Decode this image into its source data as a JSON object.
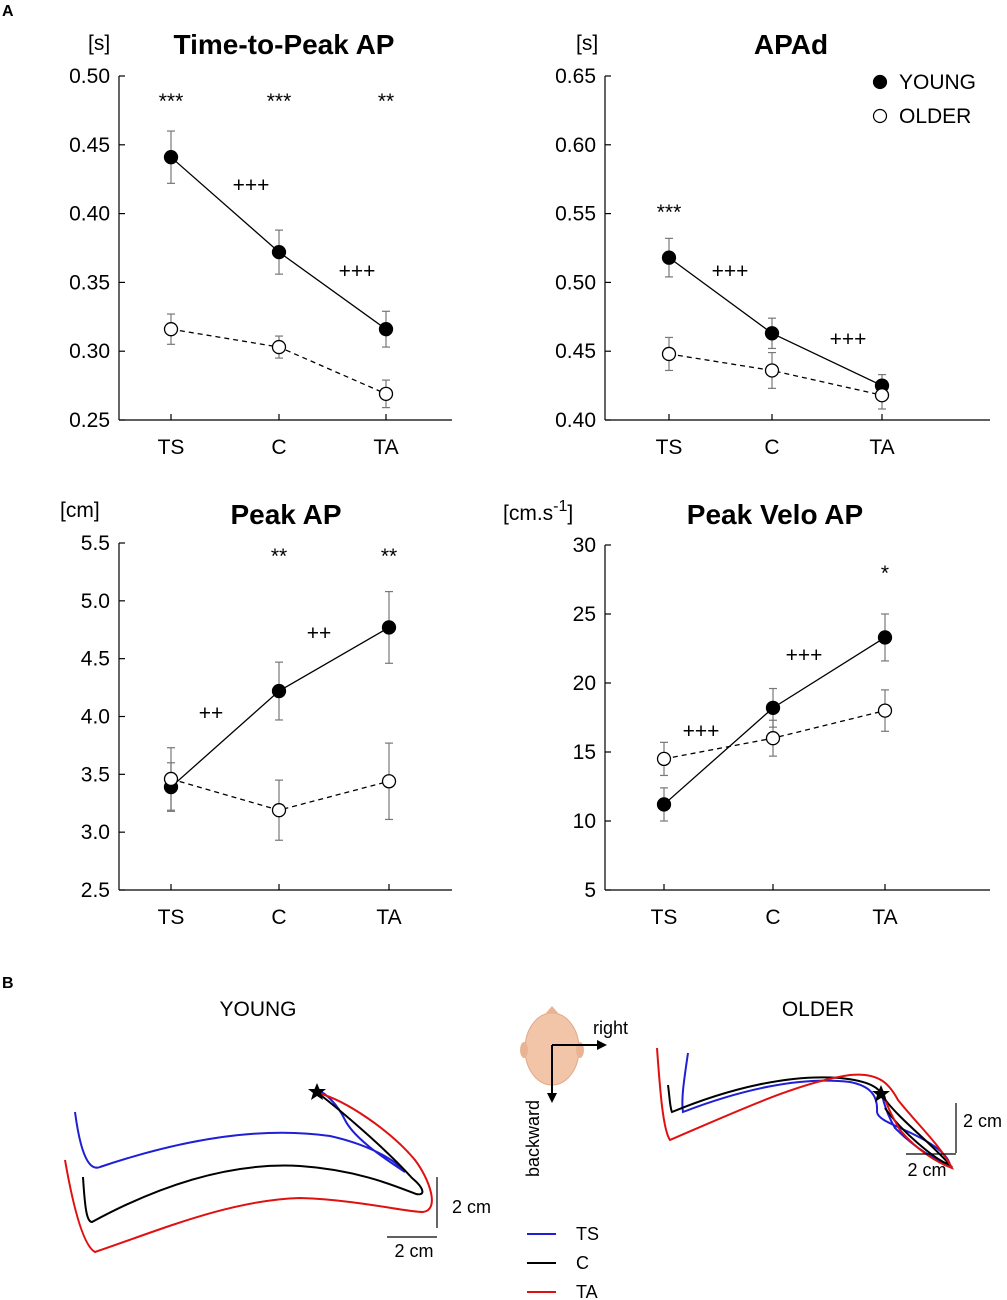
{
  "panels": {
    "a": "A",
    "b": "B"
  },
  "legend": {
    "young": "YOUNG",
    "older": "OLDER"
  },
  "chart_data": [
    {
      "type": "line",
      "title": "Time-to-Peak AP",
      "ylabel": "[s]",
      "categories": [
        "TS",
        "C",
        "TA"
      ],
      "ylim": [
        0.25,
        0.5
      ],
      "yticks": [
        0.25,
        0.3,
        0.35,
        0.4,
        0.45,
        0.5
      ],
      "yticklabels": [
        "0.25",
        "0.30",
        "0.35",
        "0.40",
        "0.45",
        "0.50"
      ],
      "series": [
        {
          "name": "YOUNG",
          "values": [
            0.441,
            0.372,
            0.316
          ],
          "errors": [
            0.019,
            0.016,
            0.013
          ]
        },
        {
          "name": "OLDER",
          "values": [
            0.316,
            0.303,
            0.269
          ],
          "errors": [
            0.011,
            0.008,
            0.01
          ]
        }
      ],
      "group_sig": [
        "***",
        "***",
        "**"
      ],
      "condition_sig": [
        "+++",
        "+++"
      ]
    },
    {
      "type": "line",
      "title": "APAd",
      "ylabel": "[s]",
      "categories": [
        "TS",
        "C",
        "TA"
      ],
      "ylim": [
        0.4,
        0.65
      ],
      "yticks": [
        0.4,
        0.45,
        0.5,
        0.55,
        0.6,
        0.65
      ],
      "yticklabels": [
        "0.40",
        "0.45",
        "0.50",
        "0.55",
        "0.60",
        "0.65"
      ],
      "series": [
        {
          "name": "YOUNG",
          "values": [
            0.518,
            0.463,
            0.425
          ],
          "errors": [
            0.014,
            0.011,
            0.008
          ]
        },
        {
          "name": "OLDER",
          "values": [
            0.448,
            0.436,
            0.418
          ],
          "errors": [
            0.012,
            0.013,
            0.01
          ]
        }
      ],
      "group_sig": [
        "***",
        "",
        ""
      ],
      "condition_sig": [
        "+++",
        "+++"
      ]
    },
    {
      "type": "line",
      "title": "Peak AP",
      "ylabel": "[cm]",
      "categories": [
        "TS",
        "C",
        "TA"
      ],
      "ylim": [
        2.5,
        5.5
      ],
      "yticks": [
        2.5,
        3.0,
        3.5,
        4.0,
        4.5,
        5.0,
        5.5
      ],
      "yticklabels": [
        "2.5",
        "3.0",
        "3.5",
        "4.0",
        "4.5",
        "5.0",
        "5.5"
      ],
      "series": [
        {
          "name": "YOUNG",
          "values": [
            3.39,
            4.22,
            4.77
          ],
          "errors": [
            0.21,
            0.25,
            0.31
          ]
        },
        {
          "name": "OLDER",
          "values": [
            3.46,
            3.19,
            3.44
          ],
          "errors": [
            0.27,
            0.26,
            0.33
          ]
        }
      ],
      "group_sig": [
        "",
        "**",
        "**"
      ],
      "condition_sig": [
        "++",
        "++"
      ]
    },
    {
      "type": "line",
      "title": "Peak Velo AP",
      "ylabel": "[cm.s",
      "ylabel_sup": "-1",
      "ylabel_end": "]",
      "categories": [
        "TS",
        "C",
        "TA"
      ],
      "ylim": [
        5,
        30
      ],
      "yticks": [
        5,
        10,
        15,
        20,
        25,
        30
      ],
      "yticklabels": [
        "5",
        "10",
        "15",
        "20",
        "25",
        "30"
      ],
      "series": [
        {
          "name": "YOUNG",
          "values": [
            11.2,
            18.2,
            23.3
          ],
          "errors": [
            1.2,
            1.4,
            1.7
          ]
        },
        {
          "name": "OLDER",
          "values": [
            14.5,
            16.0,
            18.0
          ],
          "errors": [
            1.2,
            1.3,
            1.5
          ]
        }
      ],
      "group_sig": [
        "",
        "",
        "*"
      ],
      "condition_sig": [
        "+++",
        "+++"
      ]
    }
  ],
  "trajectory": {
    "young_title": "YOUNG",
    "older_title": "OLDER",
    "scale": "2 cm",
    "axes": {
      "right": "right",
      "backward": "backward"
    },
    "conditions": [
      {
        "label": "TS",
        "color": "#1f1fd6"
      },
      {
        "label": "C",
        "color": "#000000"
      },
      {
        "label": "TA",
        "color": "#e01010"
      }
    ]
  }
}
